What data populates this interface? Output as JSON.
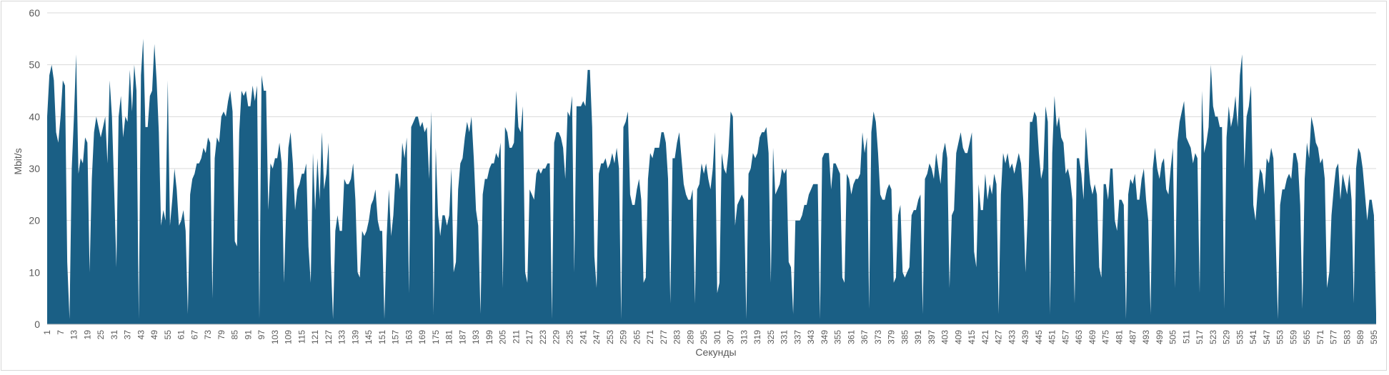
{
  "chart_data": {
    "type": "area",
    "xlabel": "Секунды",
    "ylabel": "Mbit/s",
    "ylim": [
      0,
      60
    ],
    "yticks": [
      0,
      10,
      20,
      30,
      40,
      50,
      60
    ],
    "grid": true,
    "legend": "none",
    "x_tick_labels": [
      "1",
      "7",
      "13",
      "19",
      "25",
      "31",
      "37",
      "43",
      "49",
      "55",
      "61",
      "67",
      "73",
      "79",
      "85",
      "91",
      "97",
      "103",
      "109",
      "115",
      "121",
      "127",
      "133",
      "139",
      "145",
      "151",
      "157",
      "163",
      "169",
      "175",
      "181",
      "187",
      "193",
      "199",
      "205",
      "211",
      "217",
      "223",
      "229",
      "235",
      "241",
      "247",
      "253",
      "259",
      "265",
      "271",
      "277",
      "283",
      "289",
      "295",
      "301",
      "307",
      "313",
      "319",
      "325",
      "331",
      "337",
      "343",
      "349",
      "355",
      "361",
      "367",
      "373",
      "379",
      "385",
      "391",
      "397",
      "403",
      "409",
      "415",
      "421",
      "427",
      "433",
      "439",
      "445",
      "451",
      "457",
      "463",
      "469",
      "475",
      "481",
      "487",
      "493",
      "499",
      "505",
      "511",
      "517",
      "523",
      "529",
      "535",
      "541",
      "547",
      "553",
      "559",
      "565",
      "571",
      "577",
      "583",
      "589",
      "595"
    ],
    "series": [
      {
        "color": "#1a5f85",
        "values": [
          40,
          48,
          50,
          47,
          37,
          35,
          40,
          47,
          46,
          12,
          1,
          30,
          40,
          52,
          29,
          32,
          31,
          36,
          35,
          10,
          28,
          37,
          40,
          38,
          36,
          38,
          40,
          31,
          47,
          40,
          26,
          11,
          40,
          44,
          36,
          40,
          39,
          49,
          41,
          50,
          45,
          1,
          48,
          55,
          38,
          38,
          44,
          45,
          54,
          47,
          37,
          19,
          22,
          20,
          47,
          19,
          24,
          30,
          26,
          19,
          20,
          22,
          18,
          2,
          25,
          28,
          29,
          31,
          31,
          32,
          34,
          33,
          36,
          35,
          5,
          32,
          36,
          35,
          40,
          41,
          40,
          43,
          45,
          41,
          16,
          15,
          37,
          45,
          44,
          45,
          42,
          42,
          46,
          43,
          46,
          1,
          48,
          45,
          45,
          22,
          31,
          30,
          32,
          32,
          35,
          31,
          8,
          22,
          34,
          37,
          31,
          22,
          26,
          27,
          29,
          29,
          31,
          15,
          8,
          33,
          22,
          32,
          24,
          37,
          26,
          29,
          35,
          12,
          1,
          18,
          21,
          18,
          18,
          28,
          27,
          27,
          28,
          31,
          24,
          10,
          9,
          18,
          17,
          18,
          20,
          23,
          24,
          26,
          20,
          18,
          18,
          1,
          17,
          26,
          17,
          21,
          29,
          29,
          26,
          35,
          32,
          36,
          6,
          38,
          39,
          40,
          40,
          38,
          39,
          37,
          38,
          28,
          41,
          2,
          34,
          21,
          17,
          21,
          21,
          19,
          21,
          30,
          10,
          12,
          26,
          31,
          32,
          36,
          39,
          37,
          40,
          32,
          22,
          19,
          2,
          25,
          28,
          28,
          30,
          31,
          31,
          33,
          32,
          35,
          7,
          38,
          37,
          34,
          34,
          35,
          45,
          38,
          37,
          42,
          10,
          8,
          26,
          25,
          24,
          29,
          30,
          29,
          30,
          30,
          31,
          31,
          1,
          35,
          37,
          37,
          36,
          34,
          28,
          41,
          40,
          44,
          10,
          42,
          42,
          42,
          43,
          42,
          49,
          49,
          38,
          13,
          7,
          29,
          31,
          31,
          32,
          30,
          31,
          33,
          31,
          34,
          30,
          1,
          38,
          39,
          41,
          25,
          23,
          23,
          26,
          28,
          24,
          8,
          9,
          28,
          33,
          32,
          34,
          34,
          34,
          37,
          37,
          35,
          28,
          4,
          32,
          32,
          35,
          37,
          32,
          27,
          25,
          24,
          24,
          26,
          4,
          26,
          27,
          31,
          29,
          31,
          28,
          26,
          30,
          37,
          6,
          8,
          33,
          30,
          29,
          33,
          41,
          40,
          19,
          23,
          24,
          25,
          24,
          1,
          29,
          30,
          33,
          32,
          33,
          36,
          37,
          37,
          38,
          33,
          8,
          34,
          25,
          26,
          27,
          30,
          29,
          30,
          12,
          11,
          2,
          20,
          20,
          20,
          21,
          23,
          23,
          25,
          26,
          27,
          27,
          27,
          1,
          32,
          33,
          33,
          33,
          26,
          31,
          31,
          30,
          29,
          9,
          8,
          29,
          28,
          25,
          27,
          28,
          28,
          29,
          37,
          33,
          36,
          3,
          37,
          41,
          39,
          33,
          25,
          24,
          24,
          26,
          27,
          26,
          8,
          9,
          21,
          23,
          10,
          9,
          10,
          11,
          21,
          22,
          22,
          24,
          25,
          2,
          28,
          29,
          31,
          30,
          28,
          33,
          30,
          27,
          33,
          35,
          32,
          7,
          21,
          22,
          33,
          35,
          37,
          34,
          33,
          33,
          35,
          37,
          14,
          11,
          27,
          22,
          22,
          29,
          24,
          27,
          25,
          29,
          27,
          2,
          25,
          33,
          31,
          33,
          30,
          31,
          29,
          31,
          33,
          31,
          24,
          10,
          21,
          39,
          39,
          41,
          40,
          33,
          28,
          30,
          42,
          39,
          2,
          33,
          44,
          38,
          40,
          36,
          35,
          29,
          30,
          28,
          24,
          4,
          32,
          32,
          29,
          24,
          38,
          32,
          27,
          25,
          27,
          25,
          11,
          9,
          27,
          27,
          24,
          30,
          30,
          20,
          18,
          24,
          24,
          23,
          1,
          25,
          28,
          27,
          29,
          24,
          24,
          28,
          30,
          24,
          20,
          2,
          30,
          34,
          30,
          28,
          31,
          32,
          26,
          25,
          30,
          34,
          7,
          35,
          39,
          41,
          43,
          36,
          35,
          34,
          31,
          33,
          32,
          6,
          45,
          33,
          35,
          38,
          50,
          42,
          40,
          40,
          38,
          38,
          3,
          36,
          42,
          38,
          40,
          44,
          38,
          48,
          52,
          30,
          40,
          42,
          46,
          23,
          20,
          26,
          30,
          29,
          25,
          32,
          31,
          34,
          32,
          17,
          1,
          23,
          26,
          26,
          28,
          29,
          28,
          33,
          33,
          31,
          23,
          3,
          28,
          35,
          32,
          40,
          38,
          35,
          34,
          31,
          32,
          28,
          7,
          10,
          21,
          26,
          30,
          31,
          24,
          29,
          27,
          25,
          29,
          24,
          4,
          30,
          34,
          33,
          30,
          25,
          20,
          24,
          24,
          21,
          2
        ]
      }
    ]
  }
}
